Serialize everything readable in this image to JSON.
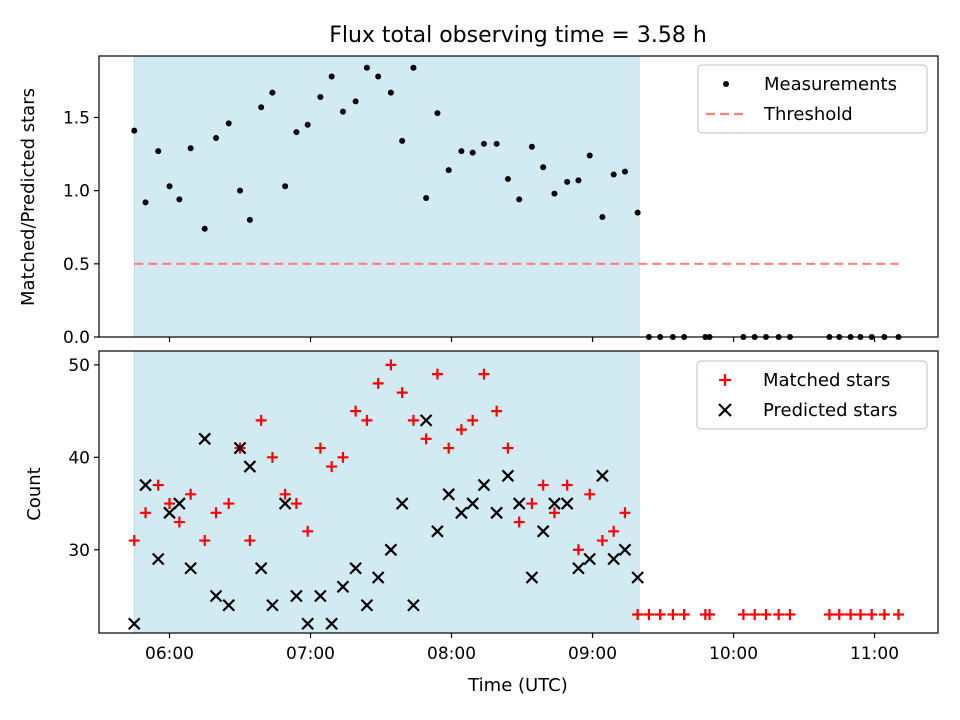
{
  "title": "Flux total observing time = 3.58 h",
  "chart_data": [
    {
      "type": "scatter",
      "ylabel": "Matched/Predicted stars",
      "xlabel": "",
      "ylim": [
        0,
        1.92
      ],
      "yticks": [
        "0.0",
        "0.5",
        "1.0",
        "1.5"
      ],
      "shaded_region_hours": [
        5.75,
        9.33
      ],
      "shaded_color": "#add8e6",
      "legend_position": "top-right",
      "series": [
        {
          "name": "Measurements",
          "color": "#000000",
          "marker": "dot",
          "x_hours": [
            5.75,
            5.83,
            5.92,
            6.0,
            6.07,
            6.15,
            6.25,
            6.33,
            6.42,
            6.5,
            6.57,
            6.65,
            6.73,
            6.82,
            6.9,
            6.98,
            7.07,
            7.15,
            7.23,
            7.32,
            7.4,
            7.48,
            7.57,
            7.65,
            7.73,
            7.82,
            7.9,
            7.98,
            8.07,
            8.15,
            8.23,
            8.32,
            8.4,
            8.48,
            8.57,
            8.65,
            8.73,
            8.82,
            8.9,
            8.98,
            9.07,
            9.15,
            9.23,
            9.32,
            9.4,
            9.48,
            9.57,
            9.65,
            9.8,
            9.83,
            10.07,
            10.15,
            10.23,
            10.32,
            10.4,
            10.68,
            10.75,
            10.83,
            10.9,
            10.98,
            11.07,
            11.17
          ],
          "y": [
            1.41,
            0.92,
            1.27,
            1.03,
            0.94,
            1.29,
            0.74,
            1.36,
            1.46,
            1.0,
            0.8,
            1.57,
            1.67,
            1.03,
            1.4,
            1.45,
            1.64,
            1.78,
            1.54,
            1.61,
            1.84,
            1.78,
            1.67,
            1.34,
            1.84,
            0.95,
            1.53,
            1.14,
            1.27,
            1.26,
            1.32,
            1.32,
            1.08,
            0.94,
            1.3,
            1.16,
            0.98,
            1.06,
            1.07,
            1.24,
            0.82,
            1.11,
            1.13,
            0.85,
            0,
            0,
            0,
            0,
            0,
            0,
            0,
            0,
            0,
            0,
            0,
            0,
            0,
            0,
            0,
            0,
            0,
            0
          ]
        },
        {
          "name": "Threshold",
          "color": "#ff8080",
          "style": "dashed",
          "x_hours": [
            5.75,
            11.17
          ],
          "y": [
            0.5,
            0.5
          ]
        }
      ]
    },
    {
      "type": "scatter",
      "xlabel": "Time (UTC)",
      "ylabel": "Count",
      "ylim": [
        21,
        51.5
      ],
      "yticks": [
        "30",
        "40",
        "50"
      ],
      "xlim_hours": [
        5.5,
        11.45
      ],
      "xticks_hours": [
        6,
        7,
        8,
        9,
        10,
        11
      ],
      "xtick_labels": [
        "06:00",
        "07:00",
        "08:00",
        "09:00",
        "10:00",
        "11:00"
      ],
      "shaded_region_hours": [
        5.75,
        9.33
      ],
      "shaded_color": "#add8e6",
      "legend_position": "top-right",
      "series": [
        {
          "name": "Matched stars",
          "color": "#ff0000",
          "marker": "plus",
          "x_hours": [
            5.75,
            5.83,
            5.92,
            6.0,
            6.07,
            6.15,
            6.25,
            6.33,
            6.42,
            6.5,
            6.57,
            6.65,
            6.73,
            6.82,
            6.9,
            6.98,
            7.07,
            7.15,
            7.23,
            7.32,
            7.4,
            7.48,
            7.57,
            7.65,
            7.73,
            7.82,
            7.9,
            7.98,
            8.07,
            8.15,
            8.23,
            8.32,
            8.4,
            8.48,
            8.57,
            8.65,
            8.73,
            8.82,
            8.9,
            8.98,
            9.07,
            9.15,
            9.23,
            9.32,
            9.4,
            9.48,
            9.57,
            9.65,
            9.8,
            9.83,
            10.07,
            10.15,
            10.23,
            10.32,
            10.4,
            10.68,
            10.75,
            10.83,
            10.9,
            10.98,
            11.07,
            11.17
          ],
          "y": [
            31,
            34,
            37,
            35,
            33,
            36,
            31,
            34,
            35,
            41,
            31,
            44,
            40,
            36,
            35,
            32,
            41,
            39,
            40,
            45,
            44,
            48,
            50,
            47,
            44,
            42,
            49,
            41,
            43,
            44,
            49,
            45,
            41,
            33,
            35,
            37,
            34,
            37,
            30,
            36,
            31,
            32,
            34,
            23,
            23,
            23,
            23,
            23,
            23,
            23,
            23,
            23,
            23,
            23,
            23,
            23,
            23,
            23,
            23,
            23,
            23,
            23
          ]
        },
        {
          "name": "Predicted stars",
          "color": "#000000",
          "marker": "x",
          "x_hours": [
            5.75,
            5.83,
            5.92,
            6.0,
            6.07,
            6.15,
            6.25,
            6.33,
            6.42,
            6.5,
            6.57,
            6.65,
            6.73,
            6.82,
            6.9,
            6.98,
            7.07,
            7.15,
            7.23,
            7.32,
            7.4,
            7.48,
            7.57,
            7.65,
            7.73,
            7.82,
            7.9,
            7.98,
            8.07,
            8.15,
            8.23,
            8.32,
            8.4,
            8.48,
            8.57,
            8.65,
            8.73,
            8.82,
            8.9,
            8.98,
            9.07,
            9.15,
            9.23,
            9.32
          ],
          "y": [
            22,
            37,
            29,
            34,
            35,
            28,
            42,
            25,
            24,
            41,
            39,
            28,
            24,
            35,
            25,
            22,
            25,
            22,
            26,
            28,
            24,
            27,
            30,
            35,
            24,
            44,
            32,
            36,
            34,
            35,
            37,
            34,
            38,
            35,
            27,
            32,
            35,
            35,
            28,
            29,
            38,
            29,
            30,
            27
          ]
        }
      ]
    }
  ]
}
